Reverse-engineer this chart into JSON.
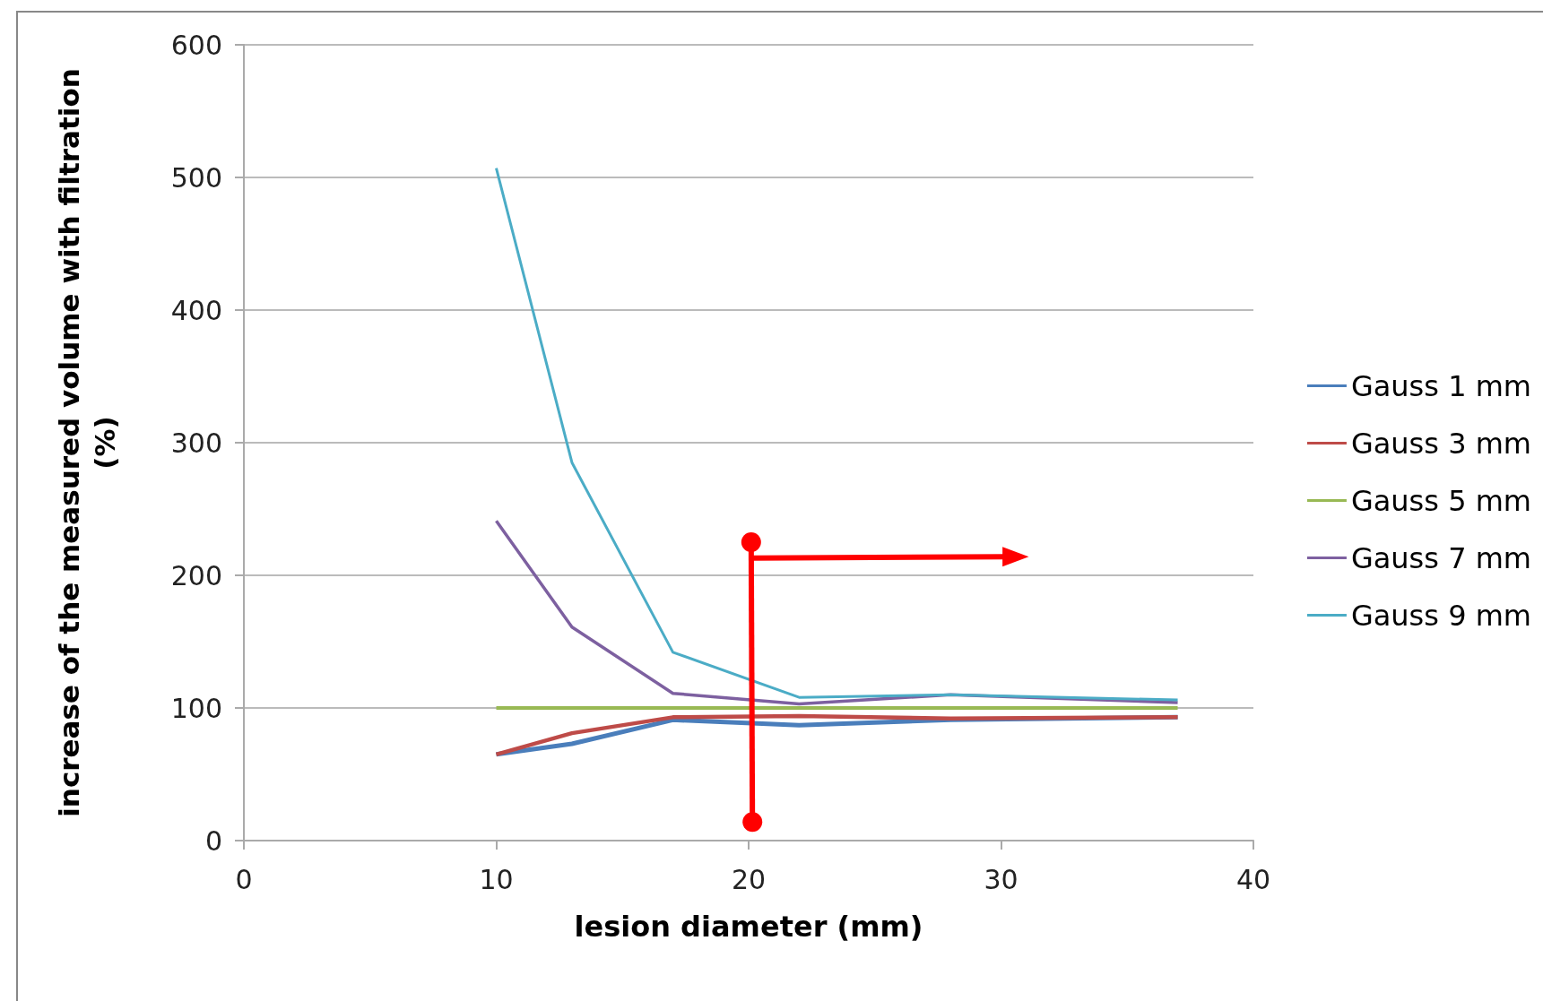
{
  "chart_data": {
    "type": "line",
    "xlabel": "lesion diameter (mm)",
    "ylabel": "increase of the measured volume with filtration\n(%)",
    "xlim": [
      0,
      40
    ],
    "xticks": [
      0,
      10,
      20,
      30,
      40
    ],
    "ylim": [
      0,
      600
    ],
    "yticks": [
      0,
      100,
      200,
      300,
      400,
      500,
      600
    ],
    "grid": "y",
    "legend": "right",
    "marker": "none",
    "x": [
      10,
      13,
      17,
      22,
      28,
      37
    ],
    "series": [
      {
        "name": "Gauss 1 mm",
        "color": "#4a7ebb",
        "values": [
          65,
          73,
          91,
          87,
          91,
          93
        ]
      },
      {
        "name": "Gauss 3 mm",
        "color": "#be4b48",
        "values": [
          65,
          81,
          93,
          94,
          92,
          93
        ]
      },
      {
        "name": "Gauss 5 mm",
        "color": "#98b954",
        "values": [
          100,
          100,
          100,
          100,
          100,
          100
        ]
      },
      {
        "name": "Gauss 7 mm",
        "color": "#7d60a0",
        "values": [
          241,
          161,
          111,
          103,
          110,
          104
        ]
      },
      {
        "name": "Gauss 9 mm",
        "color": "#4bacc6",
        "values": [
          507,
          285,
          142,
          108,
          110,
          106
        ]
      }
    ]
  }
}
